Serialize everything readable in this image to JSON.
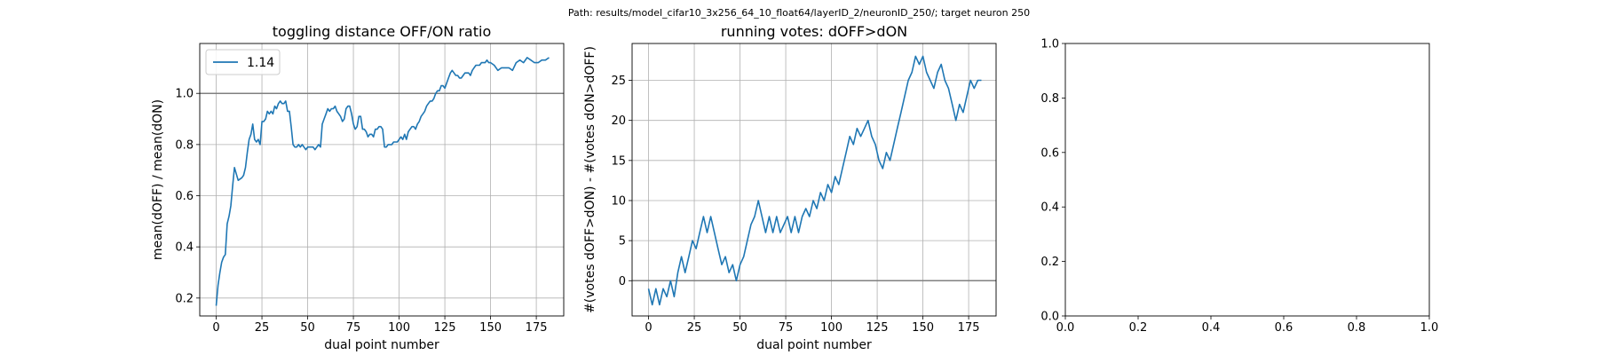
{
  "suptitle": "Path: results/model_cifar10_3x256_64_10_float64/layerID_2/neuronID_250/; target neuron 250",
  "chart_data": [
    {
      "type": "line",
      "title": "toggling distance OFF/ON ratio",
      "xlabel": "dual point number",
      "ylabel": "mean(dOFF) / mean(dON)",
      "xlim": [
        -9,
        190
      ],
      "ylim": [
        0.13,
        1.195
      ],
      "xticks": [
        0,
        25,
        50,
        75,
        100,
        125,
        150,
        175
      ],
      "yticks": [
        0.2,
        0.4,
        0.6,
        0.8,
        1.0
      ],
      "ytick_labels": [
        "0.2",
        "0.4",
        "0.6",
        "0.8",
        "1.0"
      ],
      "grid": true,
      "legend": {
        "position": "top-left"
      },
      "hline": {
        "y": 1.0,
        "color": "#808080"
      },
      "series": [
        {
          "name": "1.14",
          "color": "#1f77b4",
          "x": [
            0,
            1,
            2,
            3,
            4,
            5,
            6,
            7,
            8,
            9,
            10,
            12,
            14,
            15,
            16,
            17,
            18,
            19,
            20,
            21,
            22,
            23,
            24,
            25,
            26,
            27,
            28,
            29,
            30,
            31,
            32,
            33,
            34,
            35,
            36,
            37,
            38,
            39,
            40,
            41,
            42,
            43,
            44,
            45,
            46,
            47,
            48,
            49,
            50,
            51,
            52,
            53,
            54,
            55,
            56,
            57,
            58,
            59,
            60,
            61,
            62,
            63,
            64,
            65,
            66,
            67,
            68,
            69,
            70,
            71,
            72,
            73,
            74,
            75,
            76,
            77,
            78,
            79,
            80,
            81,
            82,
            83,
            84,
            85,
            86,
            87,
            88,
            89,
            90,
            91,
            92,
            93,
            94,
            95,
            96,
            97,
            98,
            99,
            100,
            101,
            102,
            103,
            104,
            105,
            106,
            107,
            108,
            109,
            110,
            111,
            112,
            113,
            114,
            115,
            116,
            117,
            118,
            119,
            120,
            121,
            122,
            123,
            124,
            125,
            126,
            127,
            128,
            129,
            130,
            131,
            132,
            133,
            134,
            135,
            136,
            137,
            138,
            139,
            140,
            141,
            142,
            143,
            144,
            145,
            146,
            147,
            148,
            149,
            150,
            152,
            154,
            156,
            158,
            160,
            162,
            164,
            166,
            168,
            170,
            172,
            174,
            176,
            178,
            180,
            182
          ],
          "y": [
            0.17,
            0.25,
            0.3,
            0.34,
            0.36,
            0.37,
            0.49,
            0.52,
            0.56,
            0.64,
            0.71,
            0.66,
            0.67,
            0.68,
            0.71,
            0.77,
            0.82,
            0.84,
            0.88,
            0.82,
            0.81,
            0.82,
            0.8,
            0.89,
            0.89,
            0.9,
            0.93,
            0.92,
            0.93,
            0.92,
            0.95,
            0.94,
            0.96,
            0.97,
            0.96,
            0.96,
            0.97,
            0.93,
            0.93,
            0.87,
            0.8,
            0.79,
            0.79,
            0.8,
            0.79,
            0.8,
            0.79,
            0.78,
            0.79,
            0.79,
            0.79,
            0.79,
            0.78,
            0.79,
            0.8,
            0.79,
            0.88,
            0.9,
            0.92,
            0.94,
            0.93,
            0.94,
            0.94,
            0.95,
            0.93,
            0.92,
            0.91,
            0.89,
            0.9,
            0.94,
            0.95,
            0.95,
            0.92,
            0.88,
            0.86,
            0.87,
            0.91,
            0.91,
            0.86,
            0.86,
            0.85,
            0.83,
            0.84,
            0.84,
            0.83,
            0.86,
            0.86,
            0.87,
            0.87,
            0.86,
            0.79,
            0.79,
            0.8,
            0.8,
            0.8,
            0.81,
            0.81,
            0.81,
            0.82,
            0.83,
            0.82,
            0.84,
            0.82,
            0.85,
            0.86,
            0.87,
            0.87,
            0.86,
            0.88,
            0.89,
            0.91,
            0.92,
            0.93,
            0.95,
            0.96,
            0.97,
            0.97,
            0.98,
            1.0,
            1.01,
            1.01,
            1.03,
            1.03,
            1.02,
            1.04,
            1.06,
            1.08,
            1.09,
            1.08,
            1.07,
            1.07,
            1.06,
            1.06,
            1.07,
            1.08,
            1.08,
            1.08,
            1.07,
            1.09,
            1.1,
            1.11,
            1.11,
            1.11,
            1.12,
            1.12,
            1.12,
            1.13,
            1.12,
            1.12,
            1.11,
            1.09,
            1.1,
            1.1,
            1.1,
            1.09,
            1.12,
            1.13,
            1.12,
            1.14,
            1.13,
            1.12,
            1.12,
            1.13,
            1.13,
            1.14
          ]
        }
      ]
    },
    {
      "type": "line",
      "title": "running votes: dOFF>dON",
      "xlabel": "dual point number",
      "ylabel": "#(votes dOFF>dON) - #(votes dON>dOFF)",
      "xlim": [
        -9,
        190
      ],
      "ylim": [
        -4.4,
        29.6
      ],
      "xticks": [
        0,
        25,
        50,
        75,
        100,
        125,
        150,
        175
      ],
      "yticks": [
        0,
        5,
        10,
        15,
        20,
        25
      ],
      "ytick_labels": [
        "0",
        "5",
        "10",
        "15",
        "20",
        "25"
      ],
      "grid": true,
      "hline": {
        "y": 0,
        "color": "#808080"
      },
      "series": [
        {
          "color": "#1f77b4",
          "x": [
            0,
            2,
            4,
            6,
            8,
            10,
            12,
            14,
            16,
            18,
            20,
            22,
            24,
            26,
            28,
            30,
            32,
            34,
            36,
            38,
            40,
            42,
            44,
            46,
            48,
            50,
            52,
            54,
            56,
            58,
            60,
            62,
            64,
            66,
            68,
            70,
            72,
            74,
            76,
            78,
            80,
            82,
            84,
            86,
            88,
            90,
            92,
            94,
            96,
            98,
            100,
            102,
            104,
            106,
            108,
            110,
            112,
            114,
            116,
            118,
            120,
            122,
            124,
            126,
            128,
            130,
            132,
            134,
            136,
            138,
            140,
            142,
            144,
            146,
            148,
            150,
            152,
            154,
            156,
            158,
            160,
            162,
            164,
            166,
            168,
            170,
            172,
            174,
            176,
            178,
            180,
            182
          ],
          "y": [
            -1,
            -3,
            -1,
            -3,
            -1,
            -2,
            0,
            -2,
            1,
            3,
            1,
            3,
            5,
            4,
            6,
            8,
            6,
            8,
            6,
            4,
            2,
            3,
            1,
            2,
            0,
            2,
            3,
            5,
            7,
            8,
            10,
            8,
            6,
            8,
            6,
            8,
            6,
            7,
            8,
            6,
            8,
            6,
            8,
            9,
            8,
            10,
            9,
            11,
            10,
            12,
            11,
            13,
            12,
            14,
            16,
            18,
            17,
            19,
            18,
            19,
            20,
            18,
            17,
            15,
            14,
            16,
            15,
            17,
            19,
            21,
            23,
            25,
            26,
            28,
            27,
            28,
            26,
            25,
            24,
            26,
            27,
            25,
            24,
            22,
            20,
            22,
            21,
            23,
            25,
            24,
            25,
            25
          ]
        }
      ]
    },
    {
      "type": "line",
      "title": "",
      "xlim": [
        0,
        1
      ],
      "ylim": [
        0,
        1
      ],
      "xticks": [
        0,
        0.2,
        0.4,
        0.6,
        0.8,
        1.0
      ],
      "xtick_labels": [
        "0.0",
        "0.2",
        "0.4",
        "0.6",
        "0.8",
        "1.0"
      ],
      "yticks": [
        0,
        0.2,
        0.4,
        0.6,
        0.8,
        1.0
      ],
      "ytick_labels": [
        "0.0",
        "0.2",
        "0.4",
        "0.6",
        "0.8",
        "1.0"
      ],
      "grid": false,
      "series": []
    }
  ]
}
